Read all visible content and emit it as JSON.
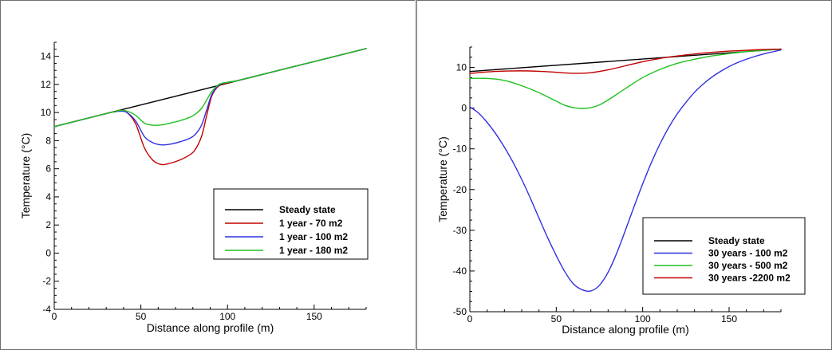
{
  "chart_data": [
    {
      "type": "line",
      "xlabel": "Distance along profile (m)",
      "ylabel": "Temperature (°C)",
      "xlim": [
        0,
        180
      ],
      "ylim": [
        -4,
        15
      ],
      "xticks": [
        0,
        50,
        100,
        150
      ],
      "yticks": [
        -4,
        -2,
        0,
        2,
        4,
        6,
        8,
        10,
        12,
        14
      ],
      "legend_position": "lower-right",
      "series": [
        {
          "name": "Steady state",
          "color": "#000000",
          "x": [
            0,
            180
          ],
          "y": [
            9.0,
            14.55
          ]
        },
        {
          "name": "1 year - 70 m2",
          "color": "#c00000",
          "x": [
            0,
            30,
            35,
            38,
            42,
            47,
            52,
            57,
            62,
            67,
            72,
            77,
            81,
            85,
            88,
            91,
            95,
            100,
            105,
            110,
            180
          ],
          "y": [
            9.0,
            9.93,
            10.05,
            10.1,
            10.0,
            9.2,
            7.5,
            6.6,
            6.3,
            6.4,
            6.6,
            6.9,
            7.3,
            8.3,
            9.8,
            11.2,
            11.9,
            12.1,
            12.25,
            12.4,
            14.55
          ]
        },
        {
          "name": "1 year - 100 m2",
          "color": "#3030e0",
          "x": [
            0,
            30,
            35,
            38,
            42,
            47,
            52,
            57,
            62,
            67,
            72,
            77,
            81,
            85,
            88,
            91,
            95,
            100,
            105,
            110,
            180
          ],
          "y": [
            9.0,
            9.93,
            10.05,
            10.1,
            10.0,
            9.4,
            8.3,
            7.85,
            7.7,
            7.75,
            7.9,
            8.1,
            8.4,
            9.1,
            10.2,
            11.3,
            11.95,
            12.15,
            12.25,
            12.4,
            14.55
          ]
        },
        {
          "name": "1 year - 180 m2",
          "color": "#20c020",
          "x": [
            0,
            30,
            35,
            38,
            42,
            47,
            52,
            57,
            62,
            67,
            72,
            77,
            81,
            85,
            88,
            91,
            95,
            100,
            105,
            110,
            180
          ],
          "y": [
            9.0,
            9.93,
            10.05,
            10.15,
            10.1,
            9.8,
            9.25,
            9.1,
            9.12,
            9.25,
            9.4,
            9.6,
            9.85,
            10.3,
            10.9,
            11.5,
            12.0,
            12.15,
            12.25,
            12.4,
            14.55
          ]
        }
      ]
    },
    {
      "type": "line",
      "xlabel": "Distance along profile (m)",
      "ylabel": "Temperature (°C)",
      "xlim": [
        0,
        180
      ],
      "ylim": [
        -50,
        15
      ],
      "xticks": [
        0,
        50,
        100,
        150
      ],
      "yticks": [
        -50,
        -40,
        -30,
        -20,
        -10,
        0,
        10
      ],
      "legend_position": "lower-right",
      "series": [
        {
          "name": "Steady state",
          "color": "#000000",
          "x": [
            0,
            180
          ],
          "y": [
            9.0,
            14.5
          ]
        },
        {
          "name": "30 years - 100 m2",
          "color": "#3030e0",
          "x": [
            0,
            5,
            10,
            15,
            20,
            25,
            30,
            35,
            40,
            45,
            50,
            55,
            60,
            65,
            70,
            75,
            80,
            85,
            90,
            95,
            100,
            105,
            110,
            115,
            120,
            125,
            130,
            135,
            140,
            145,
            150,
            155,
            160,
            165,
            170,
            175,
            180
          ],
          "y": [
            0.3,
            -1.2,
            -3.5,
            -6.3,
            -9.6,
            -13.3,
            -17.5,
            -22.1,
            -27.0,
            -31.8,
            -36.2,
            -40.2,
            -43.2,
            -44.6,
            -44.9,
            -43.5,
            -40.3,
            -35.6,
            -30.0,
            -24.2,
            -18.6,
            -13.4,
            -8.8,
            -4.8,
            -1.4,
            1.4,
            3.9,
            5.9,
            7.6,
            9.0,
            10.2,
            11.2,
            12.0,
            12.7,
            13.3,
            13.8,
            14.3
          ]
        },
        {
          "name": "30 years - 500 m2",
          "color": "#20c020",
          "x": [
            0,
            10,
            20,
            30,
            40,
            50,
            55,
            60,
            65,
            70,
            75,
            80,
            90,
            100,
            110,
            120,
            130,
            140,
            150,
            160,
            170,
            180
          ],
          "y": [
            7.3,
            7.3,
            6.8,
            5.5,
            3.8,
            1.7,
            0.7,
            0.1,
            -0.1,
            0.1,
            0.8,
            2.0,
            4.8,
            7.5,
            9.5,
            11.0,
            12.0,
            12.8,
            13.4,
            13.9,
            14.2,
            14.5
          ]
        },
        {
          "name": "30 years -2200 m2",
          "color": "#c00000",
          "x": [
            0,
            10,
            20,
            30,
            40,
            50,
            60,
            70,
            80,
            90,
            100,
            110,
            120,
            130,
            140,
            150,
            160,
            170,
            180
          ],
          "y": [
            8.5,
            8.9,
            9.1,
            9.15,
            9.05,
            8.8,
            8.55,
            8.7,
            9.4,
            10.4,
            11.4,
            12.2,
            12.8,
            13.3,
            13.7,
            14.0,
            14.2,
            14.4,
            14.5
          ]
        }
      ]
    }
  ]
}
